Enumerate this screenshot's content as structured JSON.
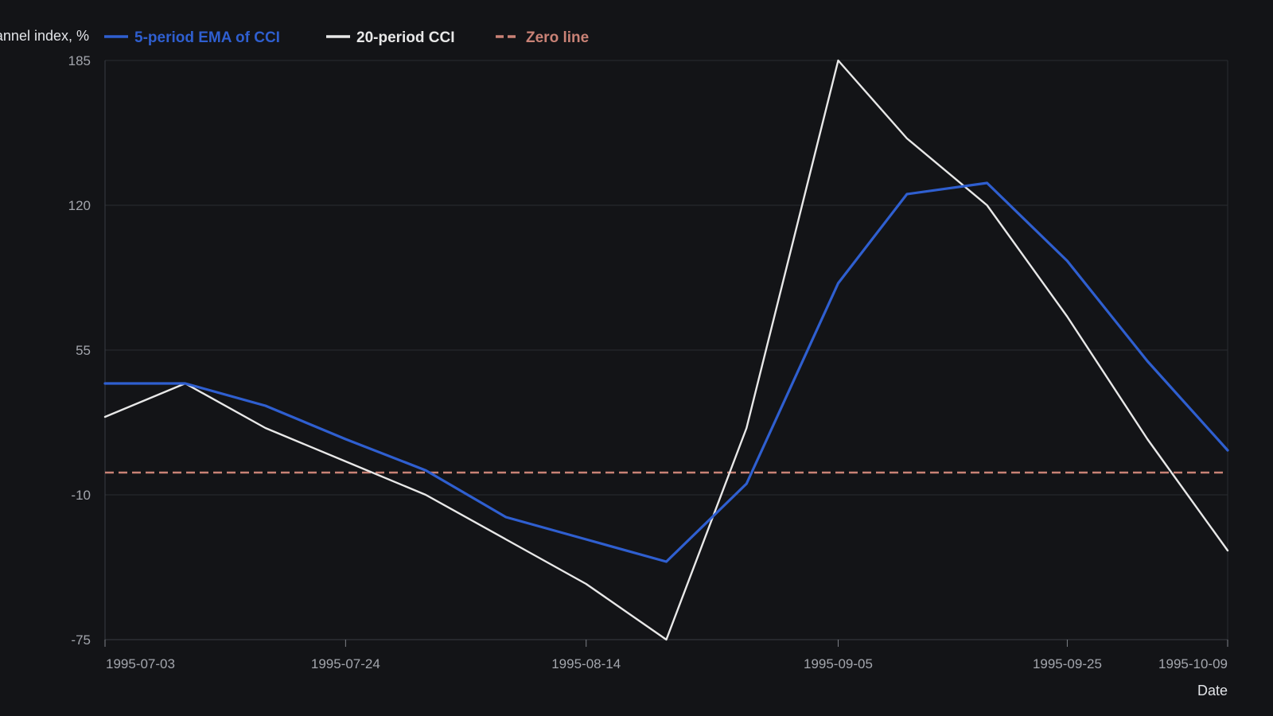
{
  "chart_data": {
    "type": "line",
    "ylabel": "Commodity channel index, %",
    "xlabel": "Date",
    "ylim": [
      -75,
      185
    ],
    "yticks": [
      185,
      120,
      55,
      -10,
      -75
    ],
    "xticks": [
      "1995-07-03",
      "1995-07-24",
      "1995-08-14",
      "1995-09-05",
      "1995-09-25",
      "1995-10-09"
    ],
    "x": [
      "1995-07-03",
      "1995-07-10",
      "1995-07-17",
      "1995-07-24",
      "1995-07-31",
      "1995-08-07",
      "1995-08-14",
      "1995-08-21",
      "1995-08-28",
      "1995-09-05",
      "1995-09-11",
      "1995-09-18",
      "1995-09-25",
      "1995-10-02",
      "1995-10-09"
    ],
    "series": [
      {
        "name": "5-period EMA of CCI",
        "color": "#2f5fd0",
        "dash": "solid",
        "values": [
          40,
          40,
          30,
          15,
          1,
          -20,
          -30,
          -40,
          -5,
          85,
          125,
          130,
          95,
          50,
          10
        ]
      },
      {
        "name": "20-period CCI",
        "color": "#e8e8e8",
        "dash": "solid",
        "values": [
          25,
          40,
          20,
          5,
          -10,
          -30,
          -50,
          -75,
          20,
          185,
          150,
          120,
          70,
          15,
          -35
        ]
      },
      {
        "name": "Zero line",
        "color": "#c98276",
        "dash": "dashed",
        "values": [
          0,
          0,
          0,
          0,
          0,
          0,
          0,
          0,
          0,
          0,
          0,
          0,
          0,
          0,
          0
        ]
      }
    ],
    "grid": true,
    "legend_position": "top-left"
  }
}
